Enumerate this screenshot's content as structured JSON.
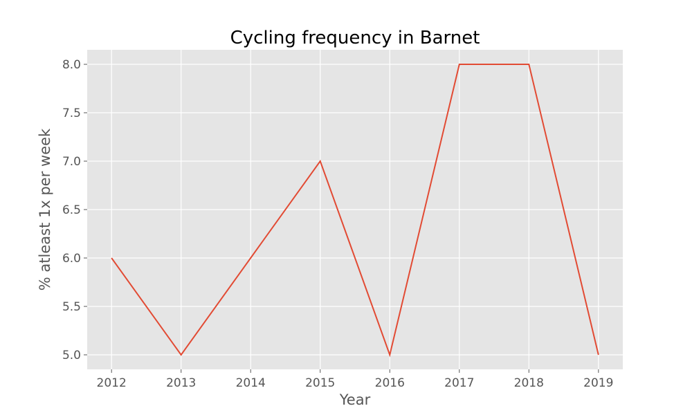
{
  "chart_data": {
    "type": "line",
    "title": "Cycling frequency in Barnet",
    "xlabel": "Year",
    "ylabel": "% atleast 1x per week",
    "x": [
      2012,
      2013,
      2014,
      2015,
      2016,
      2017,
      2018,
      2019
    ],
    "x_tick_labels": [
      "2012",
      "2013",
      "2014",
      "2015",
      "2016",
      "2017",
      "2018",
      "2019"
    ],
    "y_ticks": [
      5.0,
      5.5,
      6.0,
      6.5,
      7.0,
      7.5,
      8.0
    ],
    "y_tick_labels": [
      "5.0",
      "5.5",
      "6.0",
      "6.5",
      "7.0",
      "7.5",
      "8.0"
    ],
    "series": [
      {
        "values": [
          6,
          5,
          6,
          7,
          5,
          8,
          8,
          5
        ]
      }
    ],
    "xlim": [
      2011.65,
      2019.35
    ],
    "ylim": [
      4.85,
      8.15
    ],
    "grid": true,
    "legend": "none",
    "colors": {
      "background": "#e5e5e5",
      "grid": "#ffffff",
      "line": "#e24a33",
      "text": "#555555",
      "title": "#000000"
    }
  }
}
